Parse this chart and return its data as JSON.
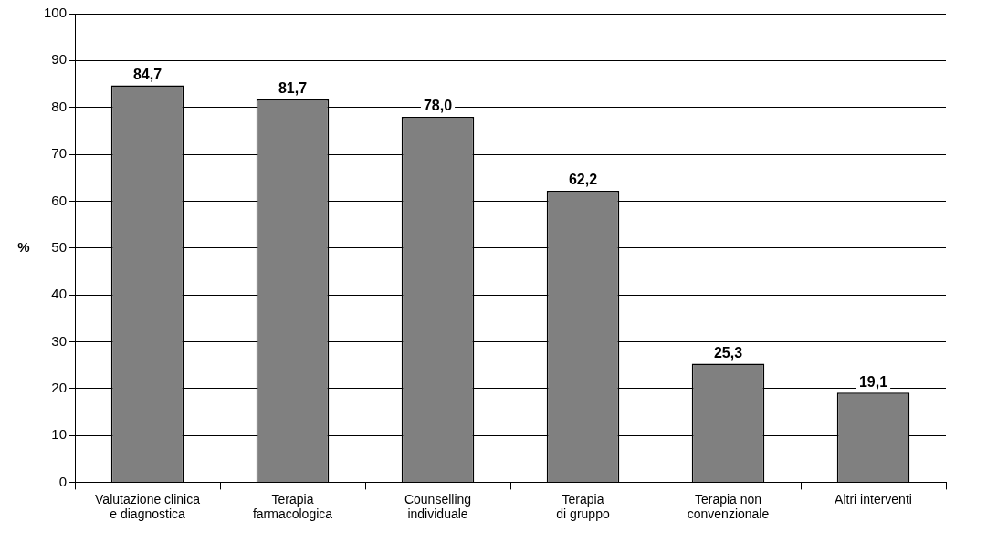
{
  "chart_data": {
    "type": "bar",
    "ylabel": "%",
    "categories": [
      "Valutazione clinica\ne diagnostica",
      "Terapia\nfarmacologica",
      "Counselling\nindividuale",
      "Terapia\ndi gruppo",
      "Terapia non\nconvenzionale",
      "Altri interventi"
    ],
    "values": [
      84.7,
      81.7,
      78.0,
      62.2,
      25.3,
      19.1
    ],
    "value_labels": [
      "84,7",
      "81,7",
      "78,0",
      "62,2",
      "25,3",
      "19,1"
    ],
    "color": "#808080",
    "ylim": [
      0,
      100
    ],
    "yticks": [
      0,
      10,
      20,
      30,
      40,
      50,
      60,
      70,
      80,
      90,
      100
    ],
    "grid": "y",
    "legend": false
  }
}
